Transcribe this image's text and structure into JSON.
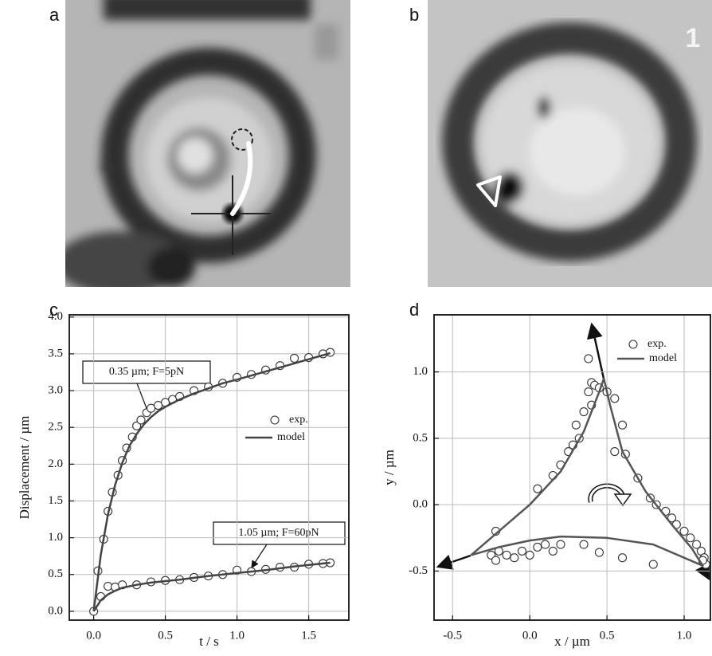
{
  "panel_labels": [
    "a",
    "b",
    "c",
    "d"
  ],
  "image_text": "1",
  "chart_data": [
    {
      "type": "scatter-line",
      "xlabel": "t / s",
      "ylabel": "Displacement / µm",
      "xlim": [
        -0.17,
        1.78
      ],
      "ylim": [
        -0.12,
        4.03
      ],
      "xticks": [
        {
          "value": 0,
          "label": "0.0"
        },
        {
          "value": 0.5,
          "label": "0.5"
        },
        {
          "value": 1,
          "label": "1.0"
        },
        {
          "value": 1.5,
          "label": "1.5"
        }
      ],
      "yticks": [
        {
          "value": 0,
          "label": "0.0"
        },
        {
          "value": 0.5,
          "label": "0.5"
        },
        {
          "value": 1,
          "label": "1.0"
        },
        {
          "value": 1.5,
          "label": "1.5"
        },
        {
          "value": 2,
          "label": "2.0"
        },
        {
          "value": 2.5,
          "label": "2.5"
        },
        {
          "value": 3,
          "label": "3.0"
        },
        {
          "value": 3.5,
          "label": "3.5"
        },
        {
          "value": 4,
          "label": "4.0"
        }
      ],
      "grid": true,
      "annotations": [
        "0.35 µm; F=5pN",
        "1.05 µm; F=60pN"
      ],
      "series": [
        {
          "name": "exp.",
          "mode": "markers",
          "color": "#333333",
          "x": [
            0,
            0.03,
            0.07,
            0.1,
            0.13,
            0.17,
            0.2,
            0.23,
            0.27,
            0.3,
            0.33,
            0.37,
            0.4,
            0.45,
            0.5,
            0.55,
            0.6,
            0.7,
            0.8,
            0.9,
            1.0,
            1.1,
            1.2,
            1.3,
            1.4,
            1.5,
            1.6,
            1.65,
            0.05,
            0.1,
            0.15,
            0.2,
            0.3,
            0.4,
            0.5,
            0.6,
            0.7,
            0.8,
            0.9,
            1.0,
            1.1,
            1.2,
            1.3,
            1.4,
            1.5,
            1.6,
            1.65
          ],
          "values": [
            0,
            0.55,
            0.98,
            1.36,
            1.62,
            1.85,
            2.05,
            2.22,
            2.37,
            2.52,
            2.6,
            2.7,
            2.76,
            2.8,
            2.84,
            2.88,
            2.92,
            3.0,
            3.05,
            3.1,
            3.18,
            3.22,
            3.28,
            3.34,
            3.44,
            3.45,
            3.5,
            3.52,
            0.2,
            0.34,
            0.33,
            0.36,
            0.36,
            0.4,
            0.42,
            0.43,
            0.46,
            0.48,
            0.5,
            0.56,
            0.54,
            0.57,
            0.6,
            0.6,
            0.64,
            0.65,
            0.66
          ]
        },
        {
          "name": "model",
          "mode": "line",
          "color": "#444444",
          "x": [
            0,
            0.05,
            0.1,
            0.15,
            0.2,
            0.25,
            0.3,
            0.35,
            0.4,
            0.45,
            0.5,
            0.6,
            0.7,
            0.8,
            0.9,
            1.0,
            1.2,
            1.4,
            1.65,
            null,
            0,
            0.05,
            0.1,
            0.15,
            0.2,
            0.3,
            0.4,
            0.6,
            0.8,
            1.0,
            1.2,
            1.4,
            1.65
          ],
          "values": [
            0,
            0.77,
            1.32,
            1.72,
            2.02,
            2.25,
            2.41,
            2.54,
            2.64,
            2.72,
            2.78,
            2.88,
            2.96,
            3.03,
            3.1,
            3.15,
            3.26,
            3.37,
            3.51,
            null,
            0,
            0.15,
            0.23,
            0.28,
            0.32,
            0.36,
            0.39,
            0.43,
            0.48,
            0.52,
            0.56,
            0.61,
            0.66
          ]
        }
      ]
    },
    {
      "type": "scatter-line",
      "xlabel": "x / µm",
      "ylabel": "y / µm",
      "xlim": [
        -0.62,
        1.17
      ],
      "ylim": [
        -0.87,
        1.43
      ],
      "xticks": [
        -0.5,
        {
          "value": 0,
          "label": "0.0"
        },
        0.5,
        {
          "value": 1,
          "label": "1.0"
        }
      ],
      "yticks": [
        -0.5,
        {
          "value": 0,
          "label": "0.0"
        },
        0.5,
        {
          "value": 1,
          "label": "1.0"
        }
      ],
      "grid": true,
      "series": [
        {
          "name": "exp.",
          "mode": "markers",
          "color": "#333333",
          "x": [
            0.38,
            0.4,
            0.42,
            0.45,
            0.38,
            0.5,
            0.55,
            0.6,
            0.4,
            0.35,
            0.3,
            0.32,
            0.28,
            0.25,
            0.2,
            0.15,
            0.05,
            0.55,
            0.62,
            0.7,
            0.78,
            0.82,
            0.88,
            0.92,
            0.95,
            1.0,
            1.04,
            1.08,
            1.11,
            1.13,
            1.14,
            1.12,
            -0.25,
            -0.22,
            -0.2,
            -0.15,
            -0.1,
            -0.05,
            0.0,
            0.05,
            0.1,
            0.15,
            0.2,
            0.35,
            0.45,
            0.6,
            0.8,
            -0.22
          ],
          "values": [
            1.1,
            0.92,
            0.9,
            0.88,
            0.85,
            0.85,
            0.8,
            0.6,
            0.75,
            0.7,
            0.6,
            0.5,
            0.45,
            0.4,
            0.3,
            0.22,
            0.12,
            0.4,
            0.38,
            0.2,
            0.05,
            0.0,
            -0.05,
            -0.1,
            -0.15,
            -0.2,
            -0.25,
            -0.3,
            -0.35,
            -0.4,
            -0.45,
            -0.42,
            -0.38,
            -0.42,
            -0.35,
            -0.38,
            -0.4,
            -0.35,
            -0.38,
            -0.32,
            -0.3,
            -0.35,
            -0.3,
            -0.3,
            -0.36,
            -0.4,
            -0.45,
            -0.2
          ]
        },
        {
          "name": "model",
          "mode": "line",
          "color": "#555555",
          "x": [
            -0.38,
            -0.2,
            0,
            0.2,
            0.35,
            0.45,
            0.48,
            0.52,
            0.6,
            0.75,
            0.92,
            1.05,
            1.12,
            0.8,
            0.5,
            0.2,
            0,
            -0.2,
            -0.38
          ],
          "values": [
            -0.38,
            -0.2,
            0,
            0.25,
            0.55,
            0.85,
            0.95,
            0.75,
            0.4,
            0.1,
            -0.15,
            -0.33,
            -0.46,
            -0.3,
            -0.25,
            -0.24,
            -0.27,
            -0.32,
            -0.38
          ]
        }
      ]
    }
  ]
}
